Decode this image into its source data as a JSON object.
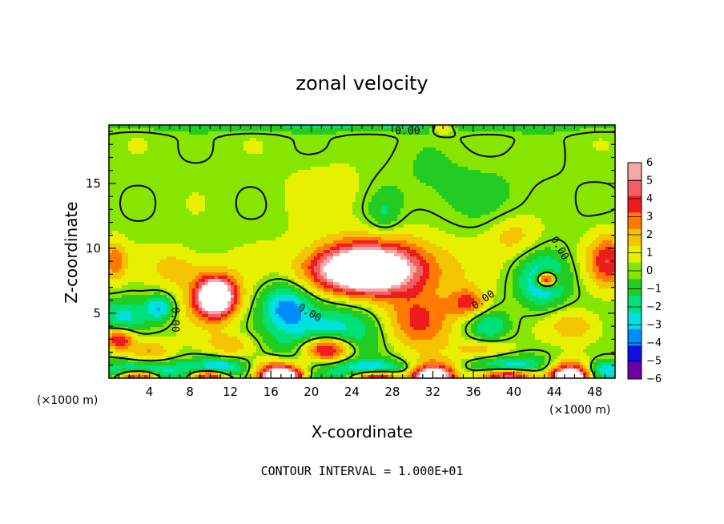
{
  "chart_data": {
    "type": "heatmap",
    "title": "zonal velocity",
    "xlabel": "X-coordinate",
    "ylabel": "Z-coordinate",
    "x_unit_label": "(×1000 m)",
    "x_unit_label_left": "(×1000 m)",
    "xlim": [
      0,
      50
    ],
    "ylim": [
      0,
      19.5
    ],
    "xticks": [
      4,
      8,
      12,
      16,
      20,
      24,
      28,
      32,
      36,
      40,
      44,
      48
    ],
    "yticks": [
      5,
      10,
      15
    ],
    "colorbar": {
      "ticks": [
        6,
        5,
        4,
        3,
        2,
        1,
        0,
        -1,
        -2,
        -3,
        -4,
        -5,
        -6
      ],
      "colors": [
        "#f7a8a8",
        "#f06060",
        "#ee1c1c",
        "#ff7a00",
        "#f5c400",
        "#e6f000",
        "#86e600",
        "#22cc22",
        "#00e078",
        "#00e0e0",
        "#008cff",
        "#1010e6",
        "#6a00a8"
      ]
    },
    "contour_label": "0.00",
    "contour_interval_text": "CONTOUR INTERVAL = 1.000E+01",
    "background_value": 0.2,
    "features": [
      {
        "x": 25,
        "y": 8.3,
        "rx": 4.6,
        "ry": 1.6,
        "value": 9
      },
      {
        "x": 27,
        "y": 8.6,
        "rx": 7.2,
        "ry": 2.7,
        "value": 3.8
      },
      {
        "x": 10.5,
        "y": 6.3,
        "rx": 1.7,
        "ry": 1.3,
        "value": 8
      },
      {
        "x": 10.5,
        "y": 6.2,
        "rx": 2.8,
        "ry": 2.2,
        "value": 3.5
      },
      {
        "x": 43.2,
        "y": 7.6,
        "rx": 1.0,
        "ry": 0.6,
        "value": 8
      },
      {
        "x": 42.8,
        "y": 7.4,
        "rx": 2.4,
        "ry": 1.9,
        "value": -4.2
      },
      {
        "x": 21.5,
        "y": 2.2,
        "rx": 2.6,
        "ry": 1.1,
        "value": 8
      },
      {
        "x": 21.5,
        "y": 3.0,
        "rx": 4.8,
        "ry": 2.8,
        "value": -4.2
      },
      {
        "x": 17.5,
        "y": 5.6,
        "rx": 2.4,
        "ry": 1.8,
        "value": -3.6
      },
      {
        "x": 30.5,
        "y": 4.2,
        "rx": 3.4,
        "ry": 2.2,
        "value": 3.2
      },
      {
        "x": 35.5,
        "y": 5.8,
        "rx": 1.8,
        "ry": 1.1,
        "value": 3.5
      },
      {
        "x": 27.2,
        "y": 12.6,
        "rx": 1.6,
        "ry": 1.6,
        "value": -1.6
      },
      {
        "x": 34,
        "y": 14.5,
        "rx": 8.5,
        "ry": 3.4,
        "value": -1.0
      },
      {
        "x": 5.0,
        "y": 5.4,
        "rx": 1.4,
        "ry": 1.0,
        "value": -3.6
      },
      {
        "x": 1.0,
        "y": 3.0,
        "rx": 1.5,
        "ry": 0.8,
        "value": 4.5
      },
      {
        "x": 1.4,
        "y": 4.8,
        "rx": 2.2,
        "ry": 1.3,
        "value": -2.8
      },
      {
        "x": 49.3,
        "y": 9.0,
        "rx": 2.0,
        "ry": 2.0,
        "value": 4.0
      },
      {
        "x": 0.6,
        "y": 9.0,
        "rx": 1.2,
        "ry": 1.5,
        "value": 3.0
      },
      {
        "x": 37.5,
        "y": 4.0,
        "rx": 2.0,
        "ry": 1.2,
        "value": -2.5
      },
      {
        "x": 4.0,
        "y": 2.0,
        "rx": 2.2,
        "ry": 0.9,
        "value": 2.5
      },
      {
        "x": 12.0,
        "y": 2.5,
        "rx": 2.5,
        "ry": 0.9,
        "value": 2.0
      },
      {
        "x": 46,
        "y": 4.0,
        "rx": 2.5,
        "ry": 1.2,
        "value": 2.2
      },
      {
        "x": 3.5,
        "y": 0.5,
        "rx": 4.0,
        "ry": 0.9,
        "value": -4.5
      },
      {
        "x": 3.0,
        "y": 0.1,
        "rx": 2.0,
        "ry": 0.5,
        "value": 8
      },
      {
        "x": 11.0,
        "y": 0.6,
        "rx": 2.8,
        "ry": 0.9,
        "value": -4.5
      },
      {
        "x": 10.0,
        "y": 0.15,
        "rx": 2.0,
        "ry": 0.5,
        "value": 8
      },
      {
        "x": 17.0,
        "y": 0.6,
        "rx": 2.6,
        "ry": 0.9,
        "value": 4.5
      },
      {
        "x": 17.0,
        "y": 0.2,
        "rx": 1.8,
        "ry": 0.5,
        "value": 8
      },
      {
        "x": 26.5,
        "y": 0.5,
        "rx": 3.5,
        "ry": 0.8,
        "value": -4.8
      },
      {
        "x": 26.5,
        "y": 0.15,
        "rx": 2.6,
        "ry": 0.5,
        "value": 8
      },
      {
        "x": 32.0,
        "y": 0.6,
        "rx": 2.4,
        "ry": 0.9,
        "value": 4.5
      },
      {
        "x": 32.0,
        "y": 0.15,
        "rx": 1.7,
        "ry": 0.5,
        "value": 8
      },
      {
        "x": 39.5,
        "y": 0.7,
        "rx": 4.0,
        "ry": 1.0,
        "value": -4.5
      },
      {
        "x": 39.5,
        "y": 0.2,
        "rx": 3.0,
        "ry": 0.6,
        "value": 8
      },
      {
        "x": 45.5,
        "y": 0.6,
        "rx": 2.2,
        "ry": 0.9,
        "value": 4.5
      },
      {
        "x": 45.5,
        "y": 0.15,
        "rx": 1.6,
        "ry": 0.5,
        "value": 8
      },
      {
        "x": 49.0,
        "y": 0.6,
        "rx": 2.0,
        "ry": 0.8,
        "value": -4.0
      },
      {
        "x": 6.5,
        "y": 8.5,
        "rx": 2.5,
        "ry": 1.5,
        "value": 1.8
      },
      {
        "x": 22,
        "y": 14.5,
        "rx": 4.0,
        "ry": 2.0,
        "value": 1.2
      },
      {
        "x": 40,
        "y": 11.0,
        "rx": 2.5,
        "ry": 1.5,
        "value": 1.8
      },
      {
        "x": 25,
        "y": 19.4,
        "rx": 30,
        "ry": 0.5,
        "value": -1.8
      },
      {
        "x": 33,
        "y": 19.3,
        "rx": 1.2,
        "ry": 0.5,
        "value": 3.0
      },
      {
        "x": 37,
        "y": 2.2,
        "rx": 3.0,
        "ry": 0.8,
        "value": 2.0
      }
    ]
  }
}
